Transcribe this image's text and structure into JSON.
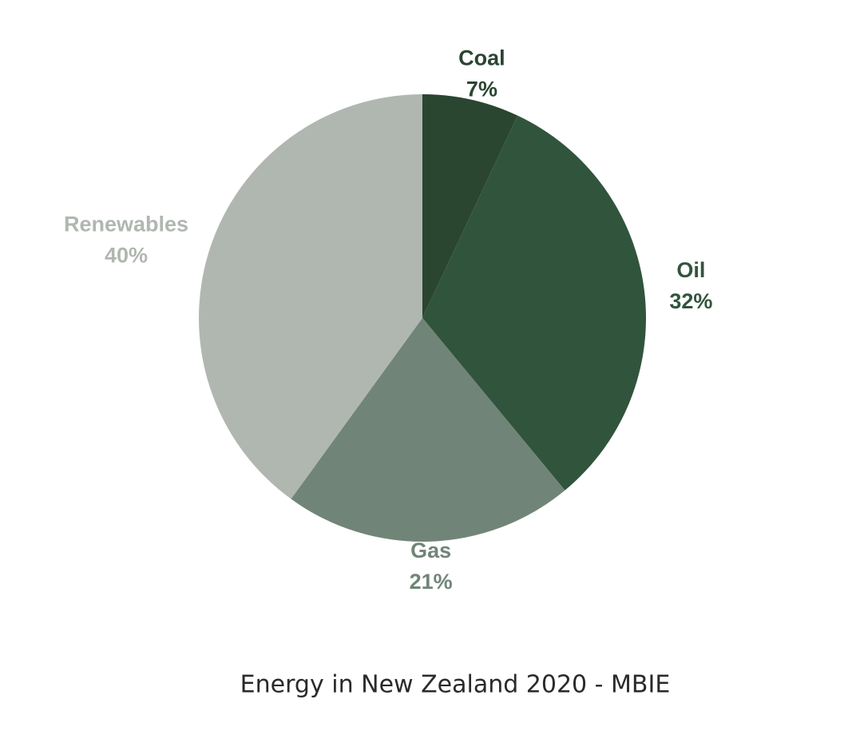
{
  "chart_data": {
    "type": "pie",
    "title": "Energy in New Zealand 2020 - MBIE",
    "categories": [
      "Coal",
      "Oil",
      "Gas",
      "Renewables"
    ],
    "values": [
      7,
      32,
      21,
      40
    ],
    "value_labels": [
      "7%",
      "32%",
      "21%",
      "40%"
    ],
    "colors": [
      "#2a4530",
      "#31543c",
      "#718478",
      "#b0b7b0"
    ]
  }
}
